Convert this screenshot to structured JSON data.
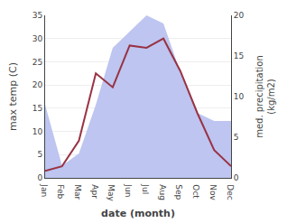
{
  "chart_data": {
    "type": "line",
    "categories": [
      "Jan",
      "Feb",
      "Mar",
      "Apr",
      "May",
      "Jun",
      "Jul",
      "Aug",
      "Sep",
      "Oct",
      "Nov",
      "Dec"
    ],
    "series": [
      {
        "type": "area",
        "axis": "y2",
        "color": "#bdc5f0",
        "values": [
          9.0,
          1.5,
          3.0,
          9.0,
          16.0,
          18.0,
          20.0,
          19.0,
          13.0,
          8.0,
          7.0,
          7.0
        ]
      },
      {
        "type": "line",
        "color": "#993344",
        "values": [
          1.5,
          2.5,
          8.0,
          22.5,
          19.5,
          28.5,
          28.0,
          30.0,
          23.0,
          14.0,
          6.0,
          2.5
        ]
      }
    ],
    "xlabel": "date (month)",
    "ylabel": "max temp (C)",
    "y2label": "med. precipitation\n(kg/m2)",
    "ylim": [
      0,
      35
    ],
    "yticks": [
      0,
      5,
      10,
      15,
      20,
      25,
      30,
      35
    ],
    "y2lim": [
      0,
      20
    ],
    "y2ticks": [
      0,
      5,
      10,
      15,
      20
    ],
    "grid": true
  }
}
